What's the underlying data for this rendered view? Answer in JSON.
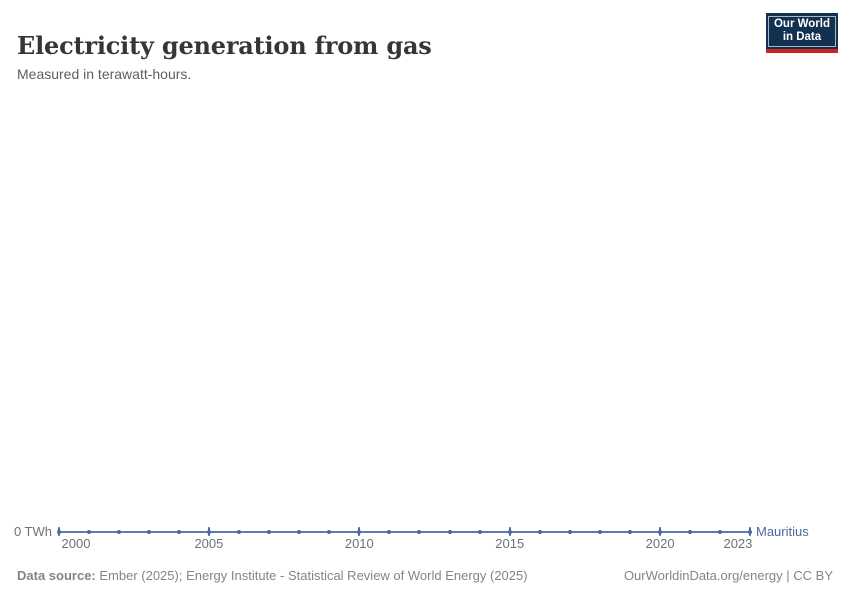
{
  "header": {
    "title": "Electricity generation from gas",
    "subtitle": "Measured in terawatt-hours.",
    "logo": {
      "line1": "Our World",
      "line2": "in Data"
    }
  },
  "chart": {
    "y_axis_label": "0 TWh",
    "entity_label": "Mauritius",
    "x_ticks": [
      "2000",
      "2005",
      "2010",
      "2015",
      "2020",
      "2023"
    ],
    "colors": {
      "line": "#5E7CAE",
      "marker": "#4C6A9C",
      "tick": "#4C6A9C",
      "entity_label": "#4C6A9C",
      "axis_text": "#6e727c"
    }
  },
  "chart_data": {
    "type": "line",
    "title": "Electricity generation from gas",
    "subtitle": "Measured in terawatt-hours.",
    "xlabel": "",
    "ylabel": "TWh",
    "ylim": [
      0,
      0
    ],
    "grid": false,
    "legend_position": "end-of-line",
    "x": [
      2000,
      2001,
      2002,
      2003,
      2004,
      2005,
      2006,
      2007,
      2008,
      2009,
      2010,
      2011,
      2012,
      2013,
      2014,
      2015,
      2016,
      2017,
      2018,
      2019,
      2020,
      2021,
      2022,
      2023
    ],
    "series": [
      {
        "name": "Mauritius",
        "values": [
          0,
          0,
          0,
          0,
          0,
          0,
          0,
          0,
          0,
          0,
          0,
          0,
          0,
          0,
          0,
          0,
          0,
          0,
          0,
          0,
          0,
          0,
          0,
          0
        ]
      }
    ],
    "x_tick_labels": [
      "2000",
      "2005",
      "2010",
      "2015",
      "2020",
      "2023"
    ],
    "y_tick_labels": [
      "0 TWh"
    ]
  },
  "footer": {
    "source_label": "Data source:",
    "source_text": " Ember (2025); Energy Institute - Statistical Review of World Energy (2025)",
    "credit": "OurWorldinData.org/energy | CC BY"
  }
}
